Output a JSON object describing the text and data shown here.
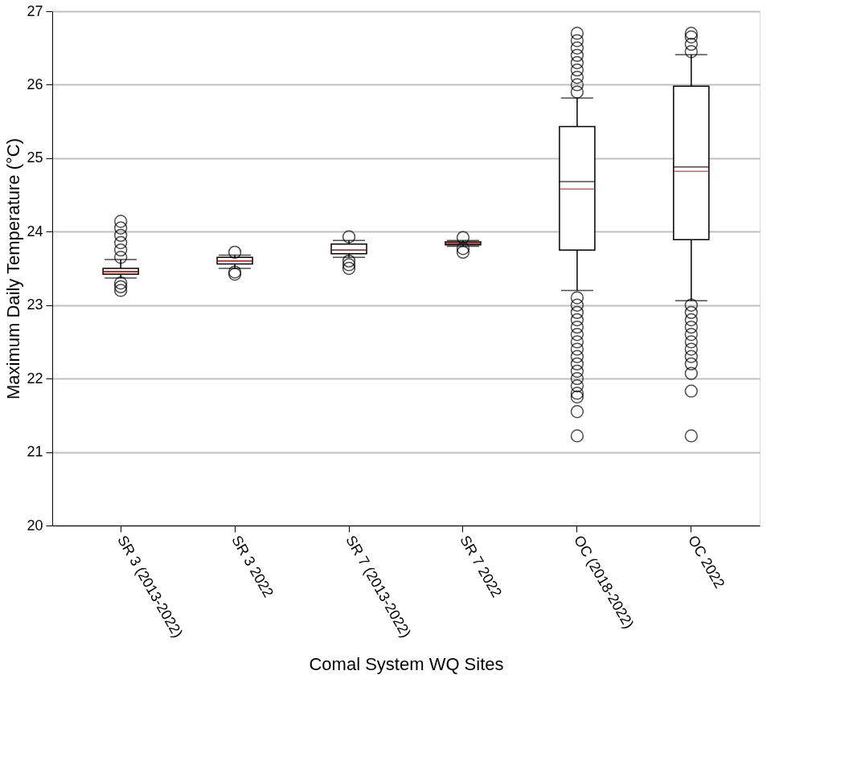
{
  "chart_data": {
    "type": "box",
    "xlabel": "Comal System WQ Sites",
    "ylabel": "Maximum Daily Temperature (°C)",
    "categories": [
      "SR 3 (2013-2022)",
      "SR 3 2022",
      "SR 7 (2013-2022)",
      "SR 7 2022",
      "OC (2018-2022)",
      "OC 2022"
    ],
    "boxes": [
      {
        "low": 23.37,
        "q1": 23.42,
        "median": 23.46,
        "q3": 23.5,
        "high": 23.62,
        "mean": 23.45,
        "outliers": [
          23.65,
          23.75,
          23.85,
          23.95,
          24.05,
          24.14,
          23.3,
          23.25,
          23.2
        ]
      },
      {
        "low": 23.5,
        "q1": 23.56,
        "median": 23.6,
        "q3": 23.65,
        "high": 23.68,
        "mean": 23.6,
        "outliers": [
          23.72,
          23.45,
          23.42
        ]
      },
      {
        "low": 23.65,
        "q1": 23.7,
        "median": 23.75,
        "q3": 23.83,
        "high": 23.88,
        "mean": 23.75,
        "outliers": [
          23.93,
          23.6,
          23.55,
          23.5
        ]
      },
      {
        "low": 23.8,
        "q1": 23.82,
        "median": 23.84,
        "q3": 23.86,
        "high": 23.88,
        "mean": 23.84,
        "outliers": [
          23.92,
          23.77,
          23.72
        ]
      },
      {
        "low": 23.2,
        "q1": 23.75,
        "median": 24.68,
        "q3": 25.43,
        "high": 25.82,
        "mean": 24.58,
        "outliers": [
          25.9,
          26.0,
          26.1,
          26.2,
          26.3,
          26.4,
          26.5,
          26.6,
          26.7,
          23.1,
          23.0,
          22.9,
          22.8,
          22.7,
          22.6,
          22.5,
          22.4,
          22.3,
          22.2,
          22.1,
          22.0,
          21.9,
          21.8,
          21.75,
          21.55,
          21.22
        ]
      },
      {
        "low": 23.06,
        "q1": 23.89,
        "median": 24.88,
        "q3": 25.98,
        "high": 26.41,
        "mean": 24.82,
        "outliers": [
          26.45,
          26.55,
          26.65,
          26.7,
          23.0,
          22.9,
          22.8,
          22.7,
          22.6,
          22.5,
          22.4,
          22.3,
          22.2,
          22.07,
          21.83,
          21.22
        ]
      }
    ],
    "ylim": [
      20,
      27
    ],
    "yticks": [
      20,
      21,
      22,
      23,
      24,
      25,
      26,
      27
    ],
    "grid": "y",
    "marker": "circle"
  }
}
